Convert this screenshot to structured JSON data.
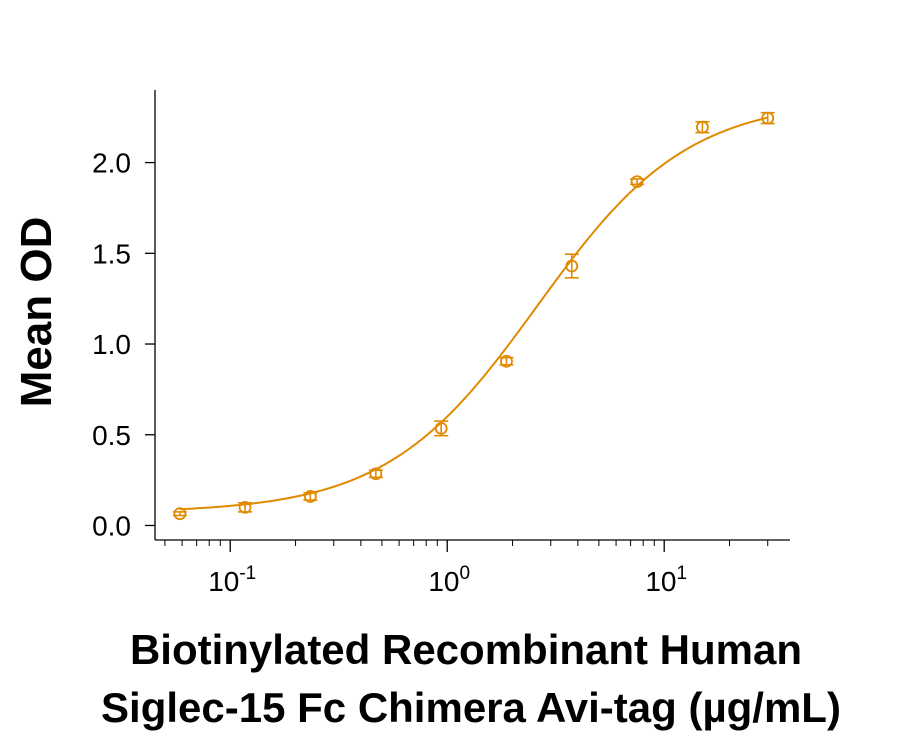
{
  "chart_data": {
    "type": "scatter",
    "x_scale": "log",
    "xlim": [
      0.045,
      38
    ],
    "ylim": [
      -0.08,
      2.4
    ],
    "y_ticks": [
      0.0,
      0.5,
      1.0,
      1.5,
      2.0
    ],
    "y_tick_labels": [
      "0.0",
      "0.5",
      "1.0",
      "1.5",
      "2.0"
    ],
    "x_major_ticks": [
      {
        "value": 0.1,
        "base": "10",
        "exp": "-1"
      },
      {
        "value": 1,
        "base": "10",
        "exp": "0"
      },
      {
        "value": 10,
        "base": "10",
        "exp": "1"
      }
    ],
    "ylabel": "Mean OD",
    "xlabel_lines": [
      "Biotinylated Recombinant Human",
      "Siglec-15 Fc Chimera Avi-tag (µg/mL)"
    ],
    "series": [
      {
        "color": "#E08A00",
        "marker": "open-circle",
        "fit": "4PL",
        "fit_params": {
          "bottom": 0.07,
          "top": 2.35,
          "ec50": 2.6,
          "hill": 1.25
        },
        "x": [
          0.0586,
          0.117,
          0.234,
          0.469,
          0.938,
          1.875,
          3.75,
          7.5,
          15,
          30
        ],
        "y": [
          0.065,
          0.1,
          0.16,
          0.285,
          0.535,
          0.905,
          1.43,
          1.895,
          2.195,
          2.245
        ],
        "error": [
          0.01,
          0.025,
          0.02,
          0.02,
          0.04,
          0.02,
          0.065,
          0.015,
          0.03,
          0.03
        ]
      }
    ]
  }
}
